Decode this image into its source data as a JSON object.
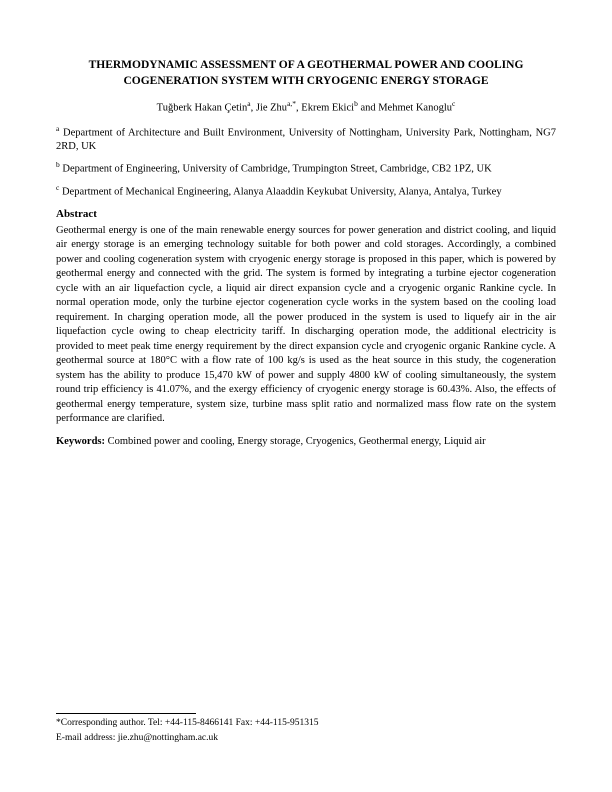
{
  "title": "THERMODYNAMIC ASSESSMENT OF A GEOTHERMAL POWER AND COOLING COGENERATION SYSTEM WITH CRYOGENIC ENERGY STORAGE",
  "authors_html": "Tuğberk Hakan Çetin<sup>a</sup>, Jie Zhu<sup>a,*</sup>, Ekrem Ekici<sup>b</sup> and Mehmet Kanoglu<sup>c</sup>",
  "affiliations": [
    {
      "mark": "a",
      "text": "Department of Architecture and Built Environment, University of Nottingham, University Park, Nottingham, NG7 2RD, UK"
    },
    {
      "mark": "b",
      "text": "Department of Engineering, University of Cambridge, Trumpington Street, Cambridge, CB2 1PZ, UK"
    },
    {
      "mark": "c",
      "text": "Department of Mechanical Engineering, Alanya Alaaddin Keykubat University, Alanya, Antalya, Turkey"
    }
  ],
  "abstract_heading": "Abstract",
  "abstract": "Geothermal energy is one of the main renewable energy sources for power generation and district cooling, and liquid air energy storage is an emerging technology suitable for both power and cold storages. Accordingly, a combined power and cooling cogeneration system with cryogenic energy storage is proposed in this paper, which is powered by geothermal energy and connected with the grid. The system is formed by integrating a turbine ejector cogeneration cycle with an air liquefaction cycle, a liquid air direct expansion cycle and a cryogenic organic Rankine cycle. In normal operation mode, only the turbine ejector cogeneration cycle works in the system based on the cooling load requirement. In charging operation mode, all the power produced in the system is used to liquefy air in the air liquefaction cycle owing to cheap electricity tariff. In discharging operation mode, the additional electricity is provided to meet peak time energy requirement by the direct expansion cycle and cryogenic organic Rankine cycle. A geothermal source at 180°C with a flow rate of 100 kg/s is used as the heat source in this study, the cogeneration system has the ability to produce 15,470 kW of power and supply 4800 kW of cooling simultaneously, the system round trip efficiency is 41.07%, and the exergy efficiency of cryogenic energy storage is 60.43%. Also, the effects of geothermal energy temperature, system size, turbine mass split ratio and normalized mass flow rate on the system performance are clarified.",
  "keywords_label": "Keywords:",
  "keywords_text": " Combined power and cooling, Energy storage, Cryogenics, Geothermal energy, Liquid air",
  "footnote_line1": "*Corresponding author. Tel: +44-115-8466141 Fax: +44-115-951315",
  "footnote_line2": "E-mail address: jie.zhu@nottingham.ac.uk"
}
